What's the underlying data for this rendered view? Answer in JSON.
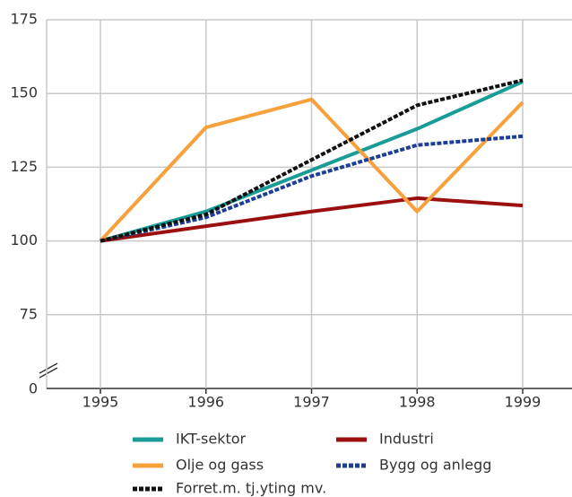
{
  "chart_data": {
    "type": "line",
    "x": [
      1995,
      1996,
      1997,
      1998,
      1999
    ],
    "xlim": [
      1995,
      1999
    ],
    "xticks": [
      1995,
      1996,
      1997,
      1998,
      1999
    ],
    "ylim": [
      50,
      175
    ],
    "yticks": [
      75,
      100,
      125,
      150,
      175
    ],
    "y_break_label": "0",
    "grid": true,
    "series": [
      {
        "name": "IKT-sektor",
        "color": "#1a9c96",
        "dashed": false,
        "values": [
          100,
          110,
          124,
          138,
          154
        ]
      },
      {
        "name": "Industri",
        "color": "#9b0f0f",
        "dashed": false,
        "values": [
          100,
          105,
          110,
          114.5,
          112
        ]
      },
      {
        "name": "Olje og gass",
        "color": "#f7a13c",
        "dashed": false,
        "values": [
          100,
          138.5,
          148,
          110,
          147
        ]
      },
      {
        "name": "Bygg og anlegg",
        "color": "#1c3f94",
        "dashed": true,
        "values": [
          100,
          108,
          122,
          132.5,
          135.5
        ]
      },
      {
        "name": "Forret.m. tj.yting mv.",
        "color": "#111111",
        "dashed": true,
        "values": [
          100,
          109,
          127.5,
          146,
          154.5
        ]
      }
    ]
  }
}
